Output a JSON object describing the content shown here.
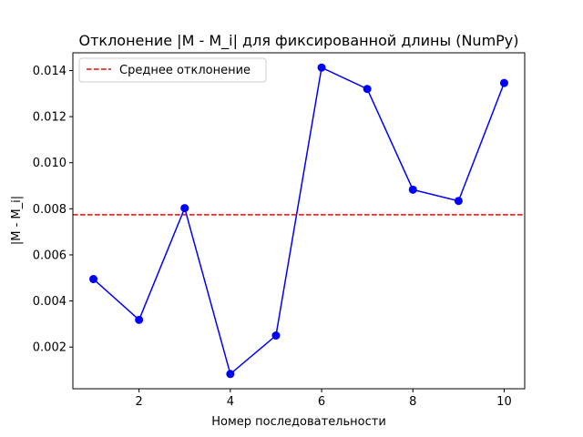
{
  "chart_data": {
    "type": "line",
    "title": "Отклонение |M - M_i| для фиксированной длины (NumPy)",
    "xlabel": "Номер последовательности",
    "ylabel": "|M - M_i|",
    "xlim": [
      0.55,
      10.45
    ],
    "ylim": [
      0.00019,
      0.01477
    ],
    "x_ticks": [
      2,
      4,
      6,
      8,
      10
    ],
    "x_tick_labels": [
      "2",
      "4",
      "6",
      "8",
      "10"
    ],
    "y_ticks": [
      0.002,
      0.004,
      0.006,
      0.008,
      0.01,
      0.012,
      0.014
    ],
    "y_tick_labels": [
      "0.002",
      "0.004",
      "0.006",
      "0.008",
      "0.010",
      "0.012",
      "0.014"
    ],
    "grid": false,
    "legend_position": "top-left",
    "series": [
      {
        "values": [
          0.00495,
          0.00318,
          0.00803,
          0.00083,
          0.0025,
          0.01413,
          0.0132,
          0.00883,
          0.00834,
          0.01346
        ],
        "x": [
          1,
          2,
          3,
          4,
          5,
          6,
          7,
          8,
          9,
          10
        ],
        "color": "#0000ff",
        "marker": "circle"
      }
    ],
    "reference_lines": [
      {
        "name": "Среднее отклонение",
        "y": 0.00774,
        "color": "#ff0000",
        "style": "dashed"
      }
    ]
  }
}
